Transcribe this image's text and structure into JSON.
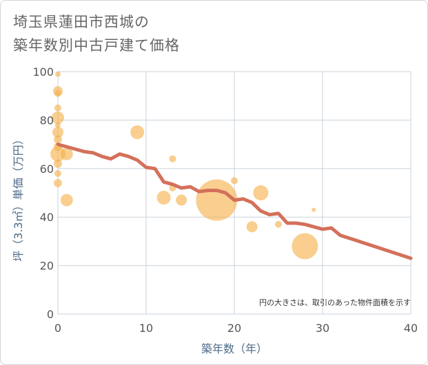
{
  "title_line1": "埼玉県蓮田市西城の",
  "title_line2": "築年数別中古戸建て価格",
  "colors": {
    "bubble": "#f5b04a",
    "line": "#d4705a",
    "grid": "#c9d3dc",
    "axis_text": "#4d6b8a"
  },
  "chart_data": {
    "type": "scatter",
    "title": "埼玉県蓮田市西城の築年数別中古戸建て価格",
    "xlabel": "築年数（年）",
    "ylabel": "坪（3.3㎡）単価（万円）",
    "xlim": [
      0,
      40
    ],
    "ylim": [
      0,
      100
    ],
    "x_ticks": [
      0,
      10,
      20,
      30,
      40
    ],
    "y_ticks": [
      0,
      20,
      40,
      60,
      80,
      100
    ],
    "grid": true,
    "annotation": "円の大きさは、取引のあった物件面積を示す",
    "bubbles": [
      {
        "x": 0,
        "y": 99,
        "r": 4
      },
      {
        "x": 0,
        "y": 92,
        "r": 7
      },
      {
        "x": 0,
        "y": 91,
        "r": 5
      },
      {
        "x": 0,
        "y": 85,
        "r": 5
      },
      {
        "x": 0,
        "y": 81,
        "r": 9
      },
      {
        "x": 0,
        "y": 78,
        "r": 4
      },
      {
        "x": 0,
        "y": 75,
        "r": 8
      },
      {
        "x": 0,
        "y": 72,
        "r": 6
      },
      {
        "x": 0,
        "y": 69,
        "r": 6
      },
      {
        "x": 0,
        "y": 66,
        "r": 11
      },
      {
        "x": 0,
        "y": 62,
        "r": 6
      },
      {
        "x": 0,
        "y": 58,
        "r": 5
      },
      {
        "x": 0,
        "y": 54,
        "r": 6
      },
      {
        "x": 1,
        "y": 66,
        "r": 9
      },
      {
        "x": 1,
        "y": 47,
        "r": 9
      },
      {
        "x": 9,
        "y": 75,
        "r": 10
      },
      {
        "x": 13,
        "y": 64,
        "r": 5
      },
      {
        "x": 12,
        "y": 48,
        "r": 10
      },
      {
        "x": 14,
        "y": 47,
        "r": 8
      },
      {
        "x": 13,
        "y": 52,
        "r": 5
      },
      {
        "x": 18,
        "y": 47,
        "r": 30
      },
      {
        "x": 20,
        "y": 55,
        "r": 5
      },
      {
        "x": 23,
        "y": 50,
        "r": 11
      },
      {
        "x": 22,
        "y": 36,
        "r": 8
      },
      {
        "x": 25,
        "y": 37,
        "r": 5
      },
      {
        "x": 28,
        "y": 28,
        "r": 19
      },
      {
        "x": 29,
        "y": 43,
        "r": 3
      }
    ],
    "trend_line": {
      "x": [
        0,
        1,
        2,
        3,
        4,
        5,
        6,
        7,
        8,
        9,
        10,
        11,
        12,
        13,
        14,
        15,
        16,
        17,
        18,
        19,
        20,
        21,
        22,
        23,
        24,
        25,
        26,
        27,
        28,
        29,
        30,
        31,
        32,
        40
      ],
      "y": [
        70,
        69,
        68,
        67,
        66.5,
        65,
        64,
        66,
        65,
        63.5,
        60.5,
        60,
        54.5,
        53.5,
        52,
        52.5,
        50.5,
        51,
        51,
        50,
        47,
        47.5,
        46,
        42.5,
        41,
        41.5,
        37.5,
        37.5,
        37,
        36,
        35,
        35.5,
        32.5,
        23
      ]
    }
  }
}
